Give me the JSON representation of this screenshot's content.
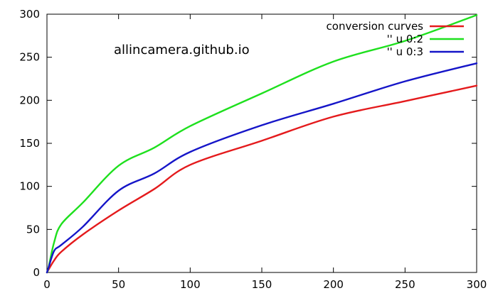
{
  "chart_data": {
    "type": "line",
    "title": "",
    "xlabel": "",
    "ylabel": "",
    "xlim": [
      0,
      300
    ],
    "ylim": [
      0,
      300
    ],
    "x_ticks": [
      0,
      50,
      100,
      150,
      200,
      250,
      300
    ],
    "y_ticks": [
      0,
      50,
      100,
      150,
      200,
      250,
      300
    ],
    "grid": false,
    "legend_position": "top-right",
    "annotation": "allincamera.github.io",
    "series": [
      {
        "name": "conversion curves",
        "color": "#e41a1c",
        "x": [
          0,
          1,
          5,
          10,
          25,
          50,
          75,
          100,
          150,
          200,
          250,
          300
        ],
        "y": [
          0,
          3,
          14,
          24,
          44,
          72,
          97,
          125,
          153,
          181,
          199,
          217
        ]
      },
      {
        "name": "'' u 0:2",
        "color": "#1ee01e",
        "x": [
          0,
          1,
          5,
          10,
          25,
          50,
          75,
          100,
          150,
          200,
          250,
          300
        ],
        "y": [
          0,
          5,
          35,
          56,
          81,
          124,
          145,
          170,
          208,
          245,
          269,
          299
        ]
      },
      {
        "name": "'' u 0:3",
        "color": "#1515c8",
        "x": [
          0,
          1,
          5,
          10,
          25,
          50,
          75,
          100,
          150,
          200,
          250,
          300
        ],
        "y": [
          0,
          5,
          25,
          32,
          53,
          95,
          115,
          140,
          171,
          196,
          222,
          243
        ]
      }
    ]
  }
}
